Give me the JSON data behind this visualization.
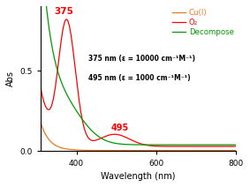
{
  "xlabel": "Wavelength (nm)",
  "ylabel": "Abs",
  "xlim": [
    310,
    800
  ],
  "ylim": [
    0.0,
    0.9
  ],
  "yticks": [
    0.0,
    0.5
  ],
  "xticks": [
    400,
    600,
    800
  ],
  "legend_entries": [
    "Cu(I)",
    "O₂",
    "Decompose"
  ],
  "legend_colors": [
    "#e87820",
    "#ff0000",
    "#009900"
  ],
  "annotation1": "375 nm (ε = 10000 cm⁻¹M⁻¹)",
  "annotation2": "495 nm (ε = 1000 cm⁻¹M⁻¹)",
  "label_375": "375",
  "label_495": "495",
  "label_375_color": "#ff0000",
  "label_495_color": "#ff0000",
  "cu_color": "#e87820",
  "o2_color": "#ff0000",
  "decompose_color": "#009900",
  "background": "#ffffff"
}
